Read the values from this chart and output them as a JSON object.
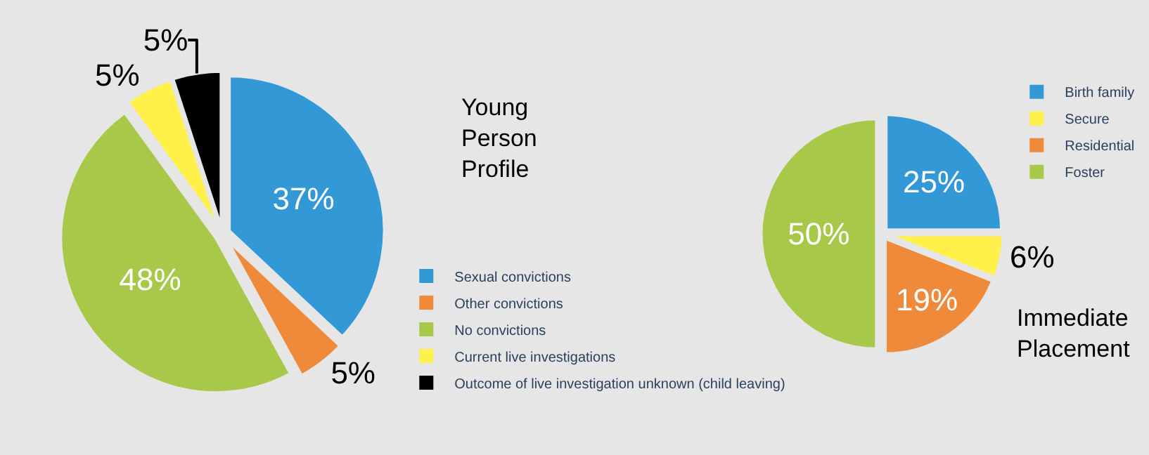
{
  "chart_data": [
    {
      "type": "pie",
      "title": "Young Person Profile",
      "categories": [
        "Sexual convictions",
        "Other convictions",
        "No convictions",
        "Current live investigations",
        "Outcome of live investigation unknown (child leaving)"
      ],
      "values": [
        37,
        5,
        48,
        5,
        5
      ],
      "value_labels": [
        "37%",
        "5%",
        "48%",
        "5%",
        "5%"
      ],
      "colors": [
        "#3399d6",
        "#ee8a3a",
        "#a8c84a",
        "#fff04a",
        "#000000"
      ],
      "legend": "bottom right"
    },
    {
      "type": "pie",
      "title": "Immediate Placement",
      "categories": [
        "Birth family",
        "Secure",
        "Residential",
        "Foster"
      ],
      "values": [
        25,
        6,
        19,
        50
      ],
      "value_labels": [
        "25%",
        "6%",
        "19%",
        "50%"
      ],
      "colors": [
        "#3399d6",
        "#fff04a",
        "#ee8a3a",
        "#a8c84a"
      ],
      "legend": "top right"
    }
  ]
}
